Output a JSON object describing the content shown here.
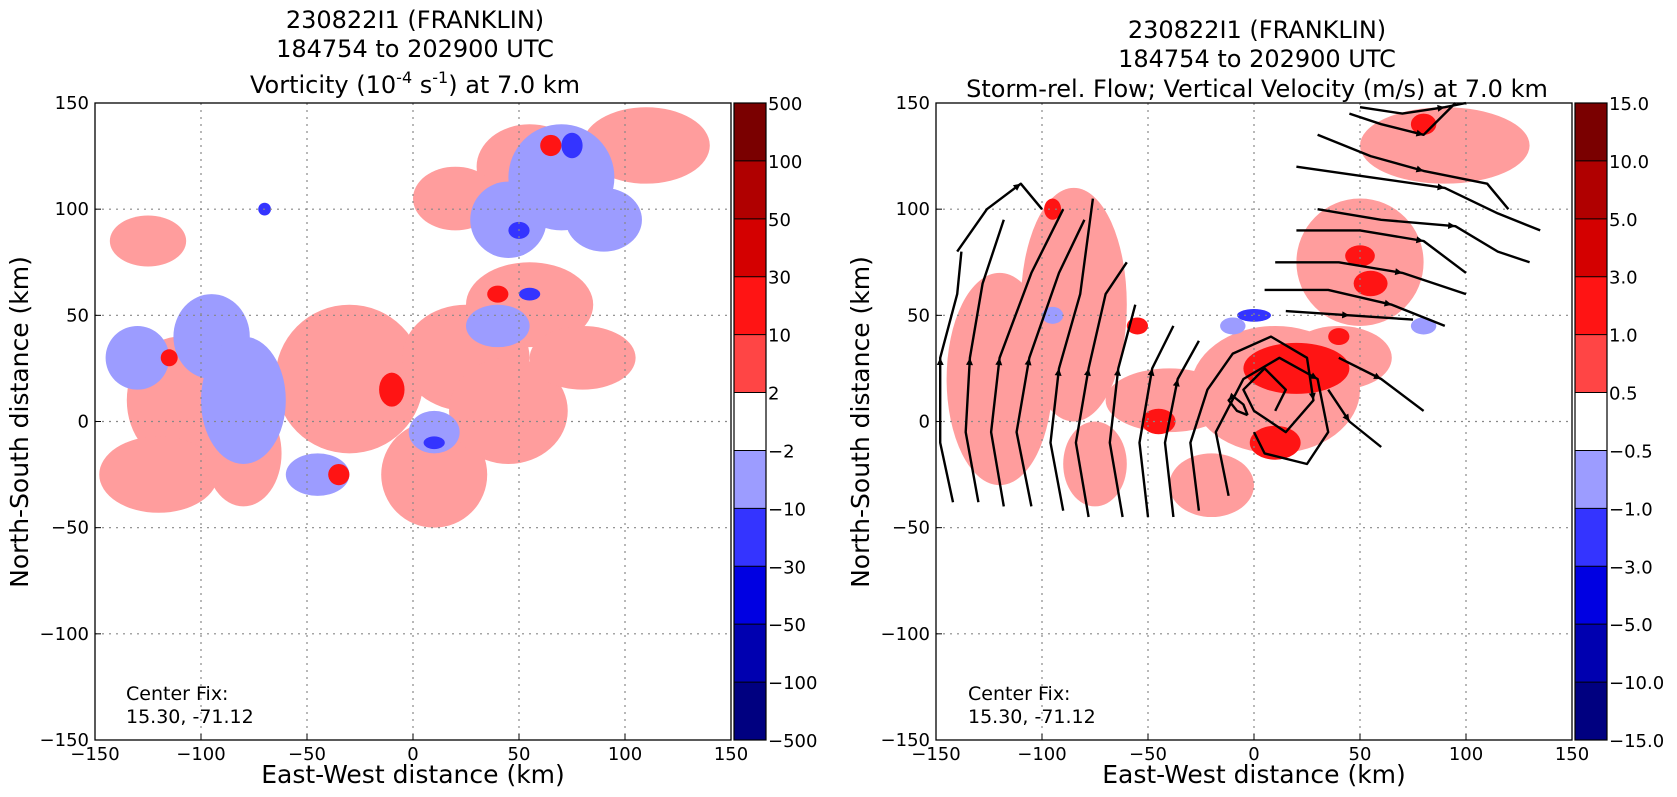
{
  "chart_data": [
    {
      "type": "heatmap",
      "title_lines": [
        "230822I1 (FRANKLIN)",
        "184754 to 202900 UTC"
      ],
      "title_line3": {
        "pre": "Vorticity (10",
        "exp1": "-4",
        "mid": " s",
        "exp2": "-1",
        "post": ") at 7.0 km"
      },
      "xlabel": "East-West distance (km)",
      "ylabel": "North-South distance (km)",
      "xlim": [
        -150,
        150
      ],
      "ylim": [
        -150,
        150
      ],
      "xticks": [
        "−150",
        "−100",
        "−50",
        "0",
        "50",
        "100",
        "150"
      ],
      "yticks": [
        "150",
        "100",
        "50",
        "0",
        "−50",
        "−100",
        "−150"
      ],
      "grid": true,
      "colorbar": {
        "levels": [
          "500",
          "100",
          "50",
          "30",
          "10",
          "2",
          "−2",
          "−10",
          "−30",
          "−50",
          "−100",
          "−500"
        ],
        "colors": [
          "#7a0000",
          "#b00000",
          "#d40000",
          "#ff1414",
          "#ff4545",
          "#ff9d9d",
          "#ffffff",
          "#9c9cff",
          "#3434ff",
          "#0000e2",
          "#0000b0",
          "#000080"
        ]
      },
      "annotation": {
        "line1": "Center Fix:",
        "line2": "15.30, -71.12"
      },
      "field_regions": {
        "weak_positive": [
          {
            "cx": -125,
            "cy": 85,
            "rx": 18,
            "ry": 12
          },
          {
            "cx": -110,
            "cy": 10,
            "rx": 25,
            "ry": 30
          },
          {
            "cx": -120,
            "cy": -25,
            "rx": 28,
            "ry": 18
          },
          {
            "cx": -80,
            "cy": -15,
            "rx": 18,
            "ry": 25
          },
          {
            "cx": -30,
            "cy": 20,
            "rx": 35,
            "ry": 35
          },
          {
            "cx": 10,
            "cy": -25,
            "rx": 25,
            "ry": 25
          },
          {
            "cx": 25,
            "cy": 30,
            "rx": 30,
            "ry": 25
          },
          {
            "cx": 55,
            "cy": 55,
            "rx": 30,
            "ry": 20
          },
          {
            "cx": 45,
            "cy": 5,
            "rx": 28,
            "ry": 25
          },
          {
            "cx": 80,
            "cy": 30,
            "rx": 25,
            "ry": 15
          },
          {
            "cx": 110,
            "cy": 130,
            "rx": 30,
            "ry": 18
          },
          {
            "cx": 55,
            "cy": 120,
            "rx": 25,
            "ry": 20
          },
          {
            "cx": 20,
            "cy": 105,
            "rx": 20,
            "ry": 15
          }
        ],
        "weak_negative": [
          {
            "cx": -95,
            "cy": 40,
            "rx": 18,
            "ry": 20
          },
          {
            "cx": -80,
            "cy": 10,
            "rx": 20,
            "ry": 30
          },
          {
            "cx": -130,
            "cy": 30,
            "rx": 15,
            "ry": 15
          },
          {
            "cx": 70,
            "cy": 115,
            "rx": 25,
            "ry": 25
          },
          {
            "cx": 45,
            "cy": 95,
            "rx": 18,
            "ry": 18
          },
          {
            "cx": 90,
            "cy": 95,
            "rx": 18,
            "ry": 15
          },
          {
            "cx": 10,
            "cy": -5,
            "rx": 12,
            "ry": 10
          },
          {
            "cx": 40,
            "cy": 45,
            "rx": 15,
            "ry": 10
          },
          {
            "cx": -45,
            "cy": -25,
            "rx": 15,
            "ry": 10
          }
        ],
        "strong_positive": [
          {
            "cx": -10,
            "cy": 15,
            "rx": 6,
            "ry": 8
          },
          {
            "cx": 65,
            "cy": 130,
            "rx": 5,
            "ry": 5
          },
          {
            "cx": -115,
            "cy": 30,
            "rx": 4,
            "ry": 4
          },
          {
            "cx": -35,
            "cy": -25,
            "rx": 5,
            "ry": 5
          },
          {
            "cx": 40,
            "cy": 60,
            "rx": 5,
            "ry": 4
          }
        ],
        "strong_negative": [
          {
            "cx": 75,
            "cy": 130,
            "rx": 5,
            "ry": 6
          },
          {
            "cx": 55,
            "cy": 60,
            "rx": 5,
            "ry": 3
          },
          {
            "cx": 10,
            "cy": -10,
            "rx": 5,
            "ry": 3
          },
          {
            "cx": 50,
            "cy": 90,
            "rx": 5,
            "ry": 4
          },
          {
            "cx": -70,
            "cy": 100,
            "rx": 3,
            "ry": 3
          }
        ]
      }
    },
    {
      "type": "heatmap",
      "title_lines": [
        "230822I1 (FRANKLIN)",
        "184754 to 202900 UTC",
        "Storm-rel. Flow; Vertical Velocity (m/s) at 7.0 km"
      ],
      "xlabel": "East-West distance (km)",
      "ylabel": "North-South distance (km)",
      "xlim": [
        -150,
        150
      ],
      "ylim": [
        -150,
        150
      ],
      "xticks": [
        "−150",
        "−100",
        "−50",
        "0",
        "50",
        "100",
        "150"
      ],
      "yticks": [
        "150",
        "100",
        "50",
        "0",
        "−50",
        "−100",
        "−150"
      ],
      "grid": true,
      "colorbar": {
        "levels": [
          "15.0",
          "10.0",
          "5.0",
          "3.0",
          "1.0",
          "0.5",
          "−0.5",
          "−1.0",
          "−3.0",
          "−5.0",
          "−10.0",
          "−15.0"
        ],
        "colors": [
          "#7a0000",
          "#b00000",
          "#d40000",
          "#ff1414",
          "#ff4545",
          "#ff9d9d",
          "#ffffff",
          "#9c9cff",
          "#3434ff",
          "#0000e2",
          "#0000b0",
          "#000080"
        ]
      },
      "annotation": {
        "line1": "Center Fix:",
        "line2": "15.30, -71.12"
      },
      "field_regions": {
        "weak_positive": [
          {
            "cx": -120,
            "cy": 20,
            "rx": 25,
            "ry": 50
          },
          {
            "cx": -85,
            "cy": 55,
            "rx": 25,
            "ry": 55
          },
          {
            "cx": -40,
            "cy": 10,
            "rx": 30,
            "ry": 15
          },
          {
            "cx": 10,
            "cy": 15,
            "rx": 40,
            "ry": 30
          },
          {
            "cx": 50,
            "cy": 75,
            "rx": 30,
            "ry": 30
          },
          {
            "cx": 90,
            "cy": 130,
            "rx": 40,
            "ry": 18
          },
          {
            "cx": -75,
            "cy": -20,
            "rx": 15,
            "ry": 20
          },
          {
            "cx": -20,
            "cy": -30,
            "rx": 20,
            "ry": 15
          },
          {
            "cx": 40,
            "cy": 30,
            "rx": 25,
            "ry": 15
          }
        ],
        "weak_negative": [
          {
            "cx": -95,
            "cy": 50,
            "rx": 5,
            "ry": 4
          },
          {
            "cx": 80,
            "cy": 45,
            "rx": 6,
            "ry": 4
          },
          {
            "cx": -10,
            "cy": 45,
            "rx": 6,
            "ry": 4
          }
        ],
        "strong_positive": [
          {
            "cx": 20,
            "cy": 25,
            "rx": 25,
            "ry": 12
          },
          {
            "cx": 10,
            "cy": -10,
            "rx": 12,
            "ry": 8
          },
          {
            "cx": -45,
            "cy": 0,
            "rx": 8,
            "ry": 6
          },
          {
            "cx": 55,
            "cy": 65,
            "rx": 8,
            "ry": 6
          },
          {
            "cx": 50,
            "cy": 78,
            "rx": 7,
            "ry": 5
          },
          {
            "cx": 80,
            "cy": 140,
            "rx": 6,
            "ry": 5
          },
          {
            "cx": -95,
            "cy": 100,
            "rx": 4,
            "ry": 5
          },
          {
            "cx": -55,
            "cy": 45,
            "rx": 5,
            "ry": 4
          },
          {
            "cx": 40,
            "cy": 40,
            "rx": 5,
            "ry": 4
          }
        ],
        "strong_negative": [
          {
            "cx": 0,
            "cy": 50,
            "rx": 8,
            "ry": 3
          }
        ]
      },
      "streamlines": [
        [
          [
            -142,
            -38
          ],
          [
            -148,
            -10
          ],
          [
            -148,
            30
          ],
          [
            -140,
            60
          ],
          [
            -138,
            80
          ]
        ],
        [
          [
            -130,
            -38
          ],
          [
            -136,
            -5
          ],
          [
            -134,
            30
          ],
          [
            -128,
            65
          ],
          [
            -118,
            95
          ]
        ],
        [
          [
            -118,
            -40
          ],
          [
            -124,
            -5
          ],
          [
            -120,
            30
          ],
          [
            -105,
            70
          ],
          [
            -90,
            100
          ]
        ],
        [
          [
            -105,
            -40
          ],
          [
            -112,
            -5
          ],
          [
            -106,
            30
          ],
          [
            -92,
            70
          ],
          [
            -80,
            95
          ]
        ],
        [
          [
            -90,
            -42
          ],
          [
            -96,
            -10
          ],
          [
            -92,
            25
          ],
          [
            -82,
            60
          ],
          [
            -76,
            105
          ]
        ],
        [
          [
            -78,
            -45
          ],
          [
            -84,
            -10
          ],
          [
            -78,
            25
          ],
          [
            -70,
            60
          ],
          [
            -60,
            75
          ]
        ],
        [
          [
            -62,
            -45
          ],
          [
            -68,
            -10
          ],
          [
            -64,
            25
          ],
          [
            -56,
            55
          ]
        ],
        [
          [
            -50,
            -45
          ],
          [
            -54,
            -10
          ],
          [
            -48,
            25
          ],
          [
            -38,
            45
          ]
        ],
        [
          [
            -38,
            -45
          ],
          [
            -42,
            -10
          ],
          [
            -36,
            20
          ],
          [
            -26,
            38
          ]
        ],
        [
          [
            -26,
            -42
          ],
          [
            -30,
            -10
          ],
          [
            -22,
            15
          ],
          [
            -10,
            32
          ],
          [
            8,
            40
          ],
          [
            25,
            30
          ],
          [
            28,
            10
          ],
          [
            15,
            -5
          ],
          [
            0,
            5
          ],
          [
            -5,
            15
          ],
          [
            5,
            25
          ],
          [
            15,
            15
          ],
          [
            10,
            5
          ]
        ],
        [
          [
            -12,
            -35
          ],
          [
            -18,
            -5
          ],
          [
            -5,
            20
          ],
          [
            12,
            30
          ],
          [
            30,
            20
          ],
          [
            35,
            -5
          ],
          [
            25,
            -20
          ],
          [
            5,
            -15
          ],
          [
            0,
            -5
          ]
        ],
        [
          [
            -140,
            80
          ],
          [
            -126,
            100
          ],
          [
            -110,
            112
          ],
          [
            -100,
            100
          ]
        ],
        [
          [
            20,
            90
          ],
          [
            50,
            90
          ],
          [
            80,
            85
          ],
          [
            100,
            70
          ]
        ],
        [
          [
            10,
            75
          ],
          [
            40,
            75
          ],
          [
            70,
            70
          ],
          [
            100,
            60
          ]
        ],
        [
          [
            5,
            62
          ],
          [
            35,
            62
          ],
          [
            65,
            55
          ],
          [
            90,
            45
          ]
        ],
        [
          [
            15,
            52
          ],
          [
            45,
            50
          ],
          [
            75,
            48
          ]
        ],
        [
          [
            40,
            30
          ],
          [
            60,
            20
          ],
          [
            80,
            5
          ]
        ],
        [
          [
            35,
            15
          ],
          [
            45,
            0
          ],
          [
            60,
            -12
          ]
        ],
        [
          [
            30,
            135
          ],
          [
            55,
            125
          ],
          [
            80,
            118
          ],
          [
            110,
            112
          ],
          [
            120,
            100
          ]
        ],
        [
          [
            20,
            120
          ],
          [
            55,
            115
          ],
          [
            90,
            110
          ],
          [
            115,
            98
          ],
          [
            135,
            90
          ]
        ],
        [
          [
            30,
            100
          ],
          [
            60,
            95
          ],
          [
            95,
            92
          ],
          [
            115,
            80
          ],
          [
            130,
            75
          ]
        ],
        [
          [
            45,
            145
          ],
          [
            60,
            140
          ],
          [
            80,
            135
          ],
          [
            95,
            150
          ]
        ],
        [
          [
            50,
            148
          ],
          [
            70,
            145
          ],
          [
            90,
            148
          ],
          [
            100,
            150
          ]
        ],
        [
          [
            -3,
            3
          ],
          [
            -5,
            8
          ],
          [
            -10,
            12
          ],
          [
            -12,
            10
          ],
          [
            -8,
            5
          ],
          [
            -3,
            3
          ]
        ]
      ]
    }
  ]
}
